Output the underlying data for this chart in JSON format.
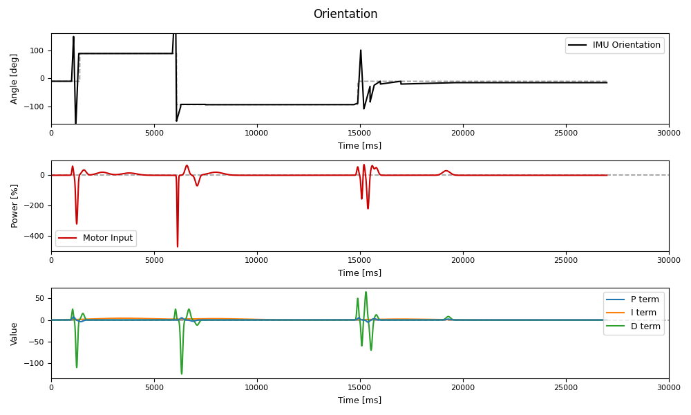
{
  "title": "Orientation",
  "xlabel": "Time [ms]",
  "subplot1_ylabel": "Angle [deg]",
  "subplot2_ylabel": "Power [%]",
  "subplot3_ylabel": "Value",
  "legend1": "IMU Orientation",
  "legend2": "Motor Input",
  "legend3_p": "P term",
  "legend3_i": "I term",
  "legend3_d": "D term",
  "imu_color": "#000000",
  "setpoint_color": "#999999",
  "motor_color": "#cc0000",
  "p_color": "#1f77b4",
  "i_color": "#ff7f0e",
  "d_color": "#2ca02c",
  "fig_width": 10.0,
  "fig_height": 6.0,
  "dpi": 100
}
